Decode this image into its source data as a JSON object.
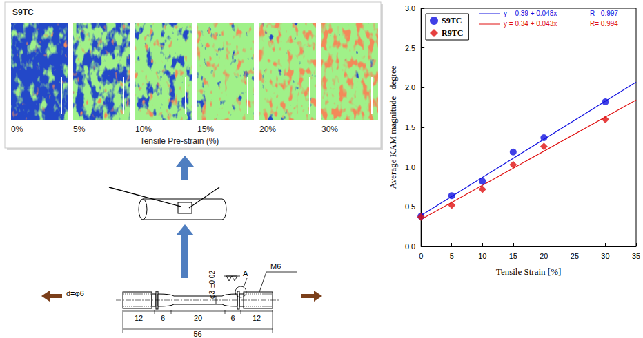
{
  "chart_data": {
    "type": "scatter",
    "xlabel": "Tensile Strain [%]",
    "ylabel": "Average KAM magnitude   degree",
    "x": [
      0,
      5,
      10,
      15,
      20,
      30
    ],
    "series": [
      {
        "name": "S9TC",
        "color": "#1010e0",
        "marker": "circle",
        "values": [
          0.38,
          0.64,
          0.82,
          1.19,
          1.37,
          1.82
        ],
        "fit": {
          "intercept": 0.39,
          "slope": 0.048,
          "equation": "y = 0.39 + 0.048x",
          "r": "R= 0.997"
        }
      },
      {
        "name": "R9TC",
        "color": "#e01010",
        "marker": "diamond",
        "values": [
          0.37,
          0.52,
          0.72,
          1.03,
          1.26,
          1.6
        ],
        "fit": {
          "intercept": 0.34,
          "slope": 0.043,
          "equation": "y = 0.34 + 0.043x",
          "r": "R= 0.994"
        }
      }
    ],
    "xlim": [
      0,
      35
    ],
    "xticks": [
      0,
      5,
      10,
      15,
      20,
      25,
      30,
      35
    ],
    "ylim": [
      0,
      3
    ],
    "yticks": [
      {
        "value": 0,
        "label": "0.0"
      },
      {
        "value": 0.5,
        "label": "0.5"
      },
      {
        "value": 1,
        "label": "1.0"
      },
      {
        "value": 1.5,
        "label": "1.5"
      },
      {
        "value": 2,
        "label": "2.0"
      },
      {
        "value": 2.5,
        "label": "2.5"
      },
      {
        "value": 3,
        "label": "3.0"
      }
    ],
    "grid": false,
    "legend": "upper left"
  },
  "kam_maps": {
    "title": "S9TC",
    "strains": [
      "0%",
      "5%",
      "10%",
      "15%",
      "20%",
      "30%"
    ],
    "xlabel": "Tensile Pre-strain (%)"
  },
  "specimen": {
    "diameter_label": "d=φ6",
    "gauge_label": "φ3",
    "tolerance": "±0.02",
    "detail": "A",
    "thread": "M6",
    "dimensions": [
      "12",
      "6",
      "20",
      "6",
      "12"
    ],
    "total": "56"
  }
}
